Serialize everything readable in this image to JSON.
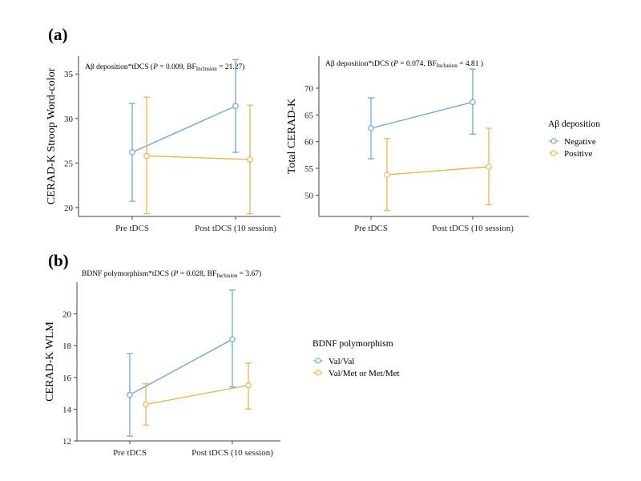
{
  "panel_labels": [
    "(a)",
    "(b)"
  ],
  "colors": {
    "negative": "#6fa8dc",
    "positive": "#f0b54a",
    "axis": "#444444"
  },
  "chart_data": [
    {
      "type": "line",
      "panel": "(a)",
      "annotation": {
        "prefix": "Aβ deposition*tDCS (",
        "p_label": "P",
        "p_rest": " = 0.009, BF",
        "sub": "Inclusion",
        "tail": " = 21.27)"
      },
      "ylabel": "CERAD-K Stroop Word-color",
      "xlabel": "",
      "categories": [
        "Pre tDCS",
        "Post tDCS (10 session)"
      ],
      "ylim": [
        19,
        37
      ],
      "yticks": [
        20,
        25,
        30,
        35
      ],
      "legend_ref": "A",
      "series": [
        {
          "name": "Negative",
          "color": "#6fa8dc",
          "values": [
            26.2,
            31.4
          ],
          "lower": [
            20.7,
            26.2
          ],
          "upper": [
            31.7,
            36.6
          ]
        },
        {
          "name": "Positive",
          "color": "#f0b54a",
          "values": [
            25.8,
            25.4
          ],
          "lower": [
            19.3,
            19.3
          ],
          "upper": [
            32.4,
            31.5
          ]
        }
      ]
    },
    {
      "type": "line",
      "panel": "(a)",
      "annotation": {
        "prefix": "Aβ deposition*tDCS (",
        "p_label": "P",
        "p_rest": " = 0.074, BF",
        "sub": "Inclusion",
        "tail": " = 4.81 )"
      },
      "ylabel": "Total CERAD-K",
      "xlabel": "",
      "categories": [
        "Pre tDCS",
        "Post tDCS (10 session)"
      ],
      "ylim": [
        46,
        76
      ],
      "yticks": [
        50,
        55,
        60,
        65,
        70
      ],
      "legend_ref": "A",
      "series": [
        {
          "name": "Negative",
          "color": "#6fa8dc",
          "values": [
            62.5,
            67.4
          ],
          "lower": [
            56.8,
            61.4
          ],
          "upper": [
            68.2,
            73.6
          ]
        },
        {
          "name": "Positive",
          "color": "#f0b54a",
          "values": [
            53.8,
            55.3
          ],
          "lower": [
            47.1,
            48.2
          ],
          "upper": [
            60.6,
            62.5
          ]
        }
      ]
    },
    {
      "type": "line",
      "panel": "(b)",
      "annotation": {
        "prefix": "BDNF polymorphism*tDCS (",
        "p_label": "P",
        "p_rest": " = 0.028, BF",
        "sub": "Inclusion",
        "tail": " = 3.67)"
      },
      "ylabel": "CERAD-K WLM",
      "xlabel": "",
      "categories": [
        "Pre tDCS",
        "Post tDCS (10 session)"
      ],
      "ylim": [
        12,
        22
      ],
      "yticks": [
        12,
        14,
        16,
        18,
        20
      ],
      "legend_ref": "B",
      "series": [
        {
          "name": "Val/Val",
          "color": "#6fa8dc",
          "values": [
            14.9,
            18.4
          ],
          "lower": [
            12.3,
            15.4
          ],
          "upper": [
            17.5,
            21.5
          ]
        },
        {
          "name": "Val/Met or Met/Met",
          "color": "#f0b54a",
          "values": [
            14.3,
            15.5
          ],
          "lower": [
            13.0,
            14.0
          ],
          "upper": [
            15.6,
            16.9
          ]
        }
      ]
    }
  ],
  "legends": {
    "A": {
      "title": "Aβ deposition",
      "items": [
        "Negative",
        "Positive"
      ],
      "colors": [
        "#6fa8dc",
        "#f0b54a"
      ]
    },
    "B": {
      "title": "BDNF polymorphism",
      "items": [
        "Val/Val",
        "Val/Met or Met/Met"
      ],
      "colors": [
        "#6fa8dc",
        "#f0b54a"
      ]
    }
  }
}
